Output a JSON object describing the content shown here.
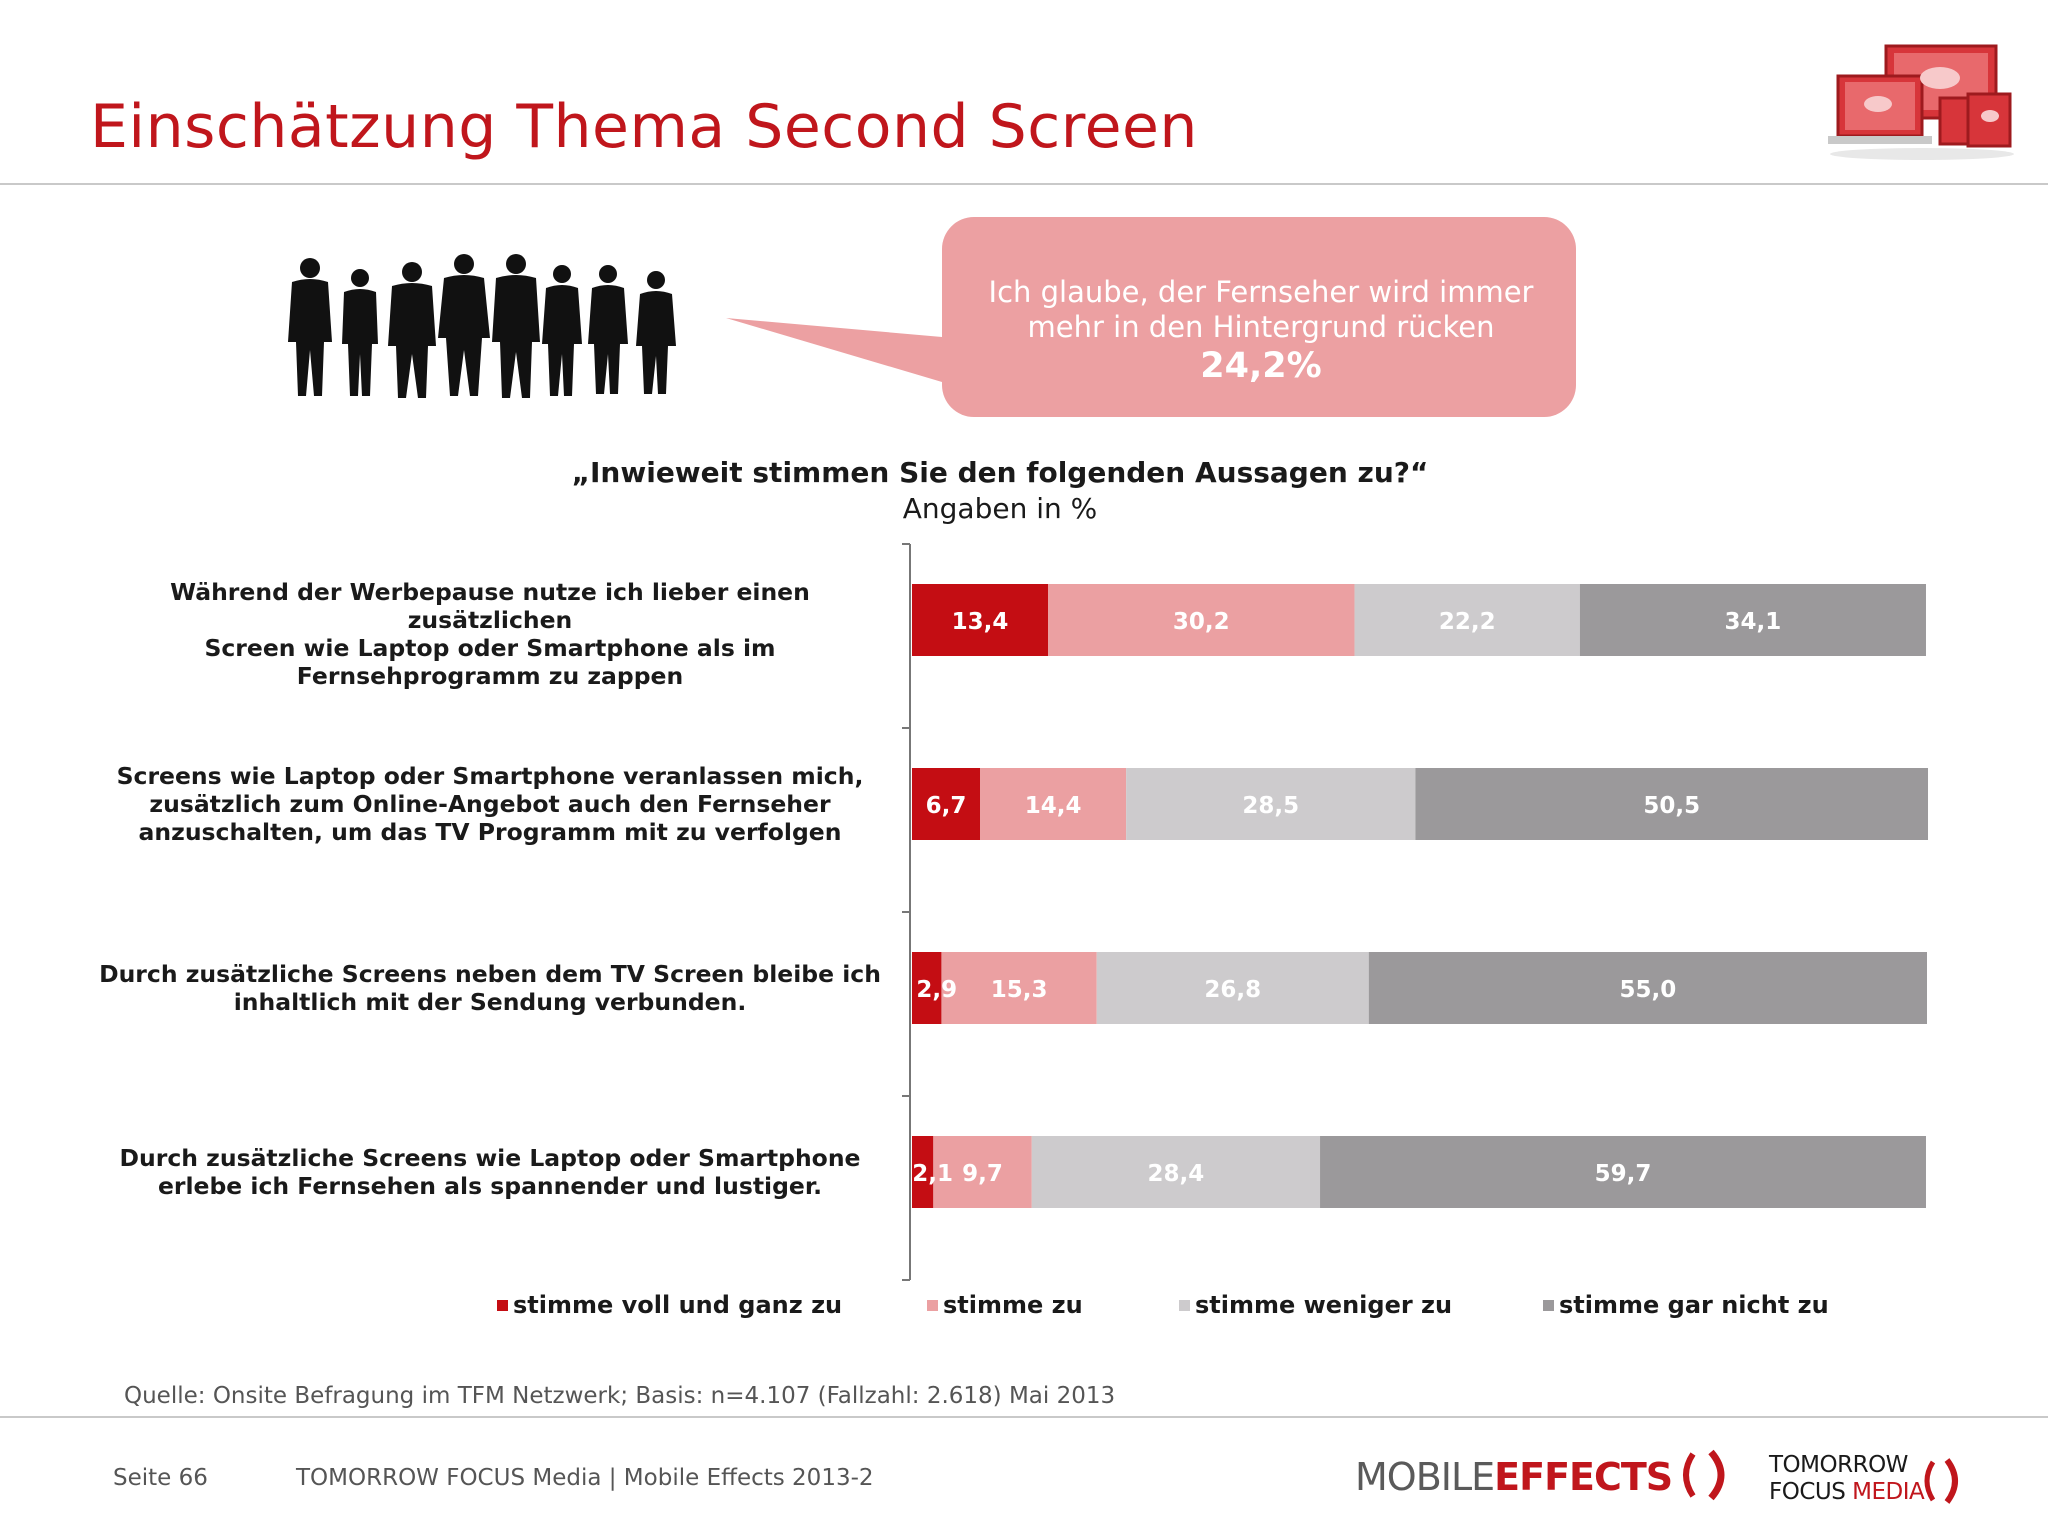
{
  "page": {
    "title": "Einschätzung Thema Second Screen",
    "source": "Quelle: Onsite Befragung im TFM Netzwerk; Basis: n=4.107 (Fallzahl: 2.618) Mai 2013",
    "footer": {
      "page_label": "Seite 66",
      "publisher": "TOMORROW FOCUS Media  |  Mobile Effects 2013-2"
    },
    "logos": {
      "mobile_effects_part1": "MOBILE",
      "mobile_effects_part2": "EFFECTS",
      "tfm_line1": "TOMORROW",
      "tfm_line2a": "FOCUS",
      "tfm_line2b": "MEDIA"
    }
  },
  "callout": {
    "line1": "Ich glaube, der Fernseher wird immer",
    "line2": "mehr in den Hintergrund rücken",
    "value": "24,2%"
  },
  "colors": {
    "brand_red": "#c0161c",
    "series": [
      "#c40d13",
      "#eba0a2",
      "#cdcbcd",
      "#9b999b"
    ],
    "callout_fill": "#eca0a2"
  },
  "chart_data": {
    "type": "bar",
    "orientation": "horizontal",
    "stacked": true,
    "title": "„Inwieweit stimmen Sie den folgenden Aussagen zu?“",
    "subtitle": "Angaben in %",
    "xlim": [
      0,
      100
    ],
    "grid": false,
    "legend_position": "bottom",
    "categories": [
      [
        "Während der Werbepause nutze ich lieber einen zusätzlichen",
        "Screen wie Laptop oder Smartphone als im",
        "Fernsehprogramm zu zappen"
      ],
      [
        "Screens wie Laptop oder Smartphone veranlassen mich,",
        "zusätzlich zum Online-Angebot auch den Fernseher",
        "anzuschalten, um das TV Programm mit zu verfolgen"
      ],
      [
        "Durch zusätzliche Screens neben dem TV Screen bleibe ich",
        "inhaltlich mit der Sendung verbunden."
      ],
      [
        "Durch zusätzliche  Screens wie Laptop oder Smartphone",
        "erlebe ich Fernsehen als spannender und lustiger."
      ]
    ],
    "series": [
      {
        "name": "stimme voll und ganz zu",
        "values": [
          13.4,
          6.7,
          2.9,
          2.1
        ],
        "labels": [
          "13,4",
          "6,7",
          "2,9",
          "2,1"
        ]
      },
      {
        "name": "stimme zu",
        "values": [
          30.2,
          14.4,
          15.3,
          9.7
        ],
        "labels": [
          "30,2",
          "14,4",
          "15,3",
          "9,7"
        ]
      },
      {
        "name": "stimme weniger zu",
        "values": [
          22.2,
          28.5,
          26.8,
          28.4
        ],
        "labels": [
          "22,2",
          "28,5",
          "26,8",
          "28,4"
        ]
      },
      {
        "name": "stimme gar nicht zu",
        "values": [
          34.1,
          50.5,
          55.0,
          59.7
        ],
        "labels": [
          "34,1",
          "50,5",
          "55,0",
          "59,7"
        ]
      }
    ]
  }
}
